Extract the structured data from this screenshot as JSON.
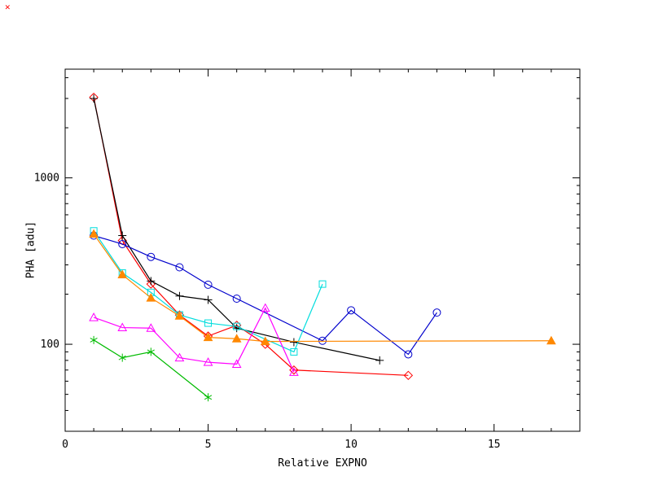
{
  "page": {
    "background": "#ffffff"
  },
  "corner_mark": {
    "symbol": "✕",
    "color": "#ff0000"
  },
  "chart_data": {
    "type": "line",
    "title": "",
    "xlabel": "Relative EXPNO",
    "ylabel": "PHA [adu]",
    "xlim": [
      0,
      18
    ],
    "ylim": [
      30,
      4500
    ],
    "yscale": "log",
    "grid": false,
    "legend": "none",
    "x_ticks": {
      "values": [
        0,
        5,
        10,
        15
      ],
      "labels": [
        "0",
        "5",
        "10",
        "15"
      ],
      "minor_step": 1
    },
    "y_ticks": {
      "values": [
        100,
        1000
      ],
      "labels": [
        "100",
        "1000"
      ]
    },
    "series": [
      {
        "name": "red-diamond",
        "color": "#ff0000",
        "marker": "diamond",
        "filled": false,
        "x": [
          1,
          2,
          3,
          4,
          5,
          6,
          7,
          8,
          12
        ],
        "y": [
          3050,
          420,
          230,
          150,
          112,
          130,
          100,
          70,
          65
        ]
      },
      {
        "name": "black-plus",
        "color": "#000000",
        "marker": "plus",
        "filled": false,
        "x": [
          1,
          2,
          3,
          4,
          5,
          6,
          8,
          11
        ],
        "y": [
          3000,
          450,
          240,
          195,
          185,
          125,
          103,
          80
        ]
      },
      {
        "name": "blue-circle",
        "color": "#0000cc",
        "marker": "circle",
        "filled": false,
        "x": [
          1,
          2,
          3,
          4,
          5,
          6,
          9,
          10,
          12,
          13
        ],
        "y": [
          450,
          400,
          335,
          290,
          228,
          188,
          105,
          160,
          87,
          155
        ]
      },
      {
        "name": "cyan-square",
        "color": "#00dddd",
        "marker": "square",
        "filled": false,
        "x": [
          1,
          2,
          3,
          4,
          5,
          6,
          8,
          9
        ],
        "y": [
          480,
          268,
          205,
          150,
          134,
          128,
          90,
          230
        ]
      },
      {
        "name": "orange-triangle",
        "color": "#ff8800",
        "marker": "triangle",
        "filled": true,
        "x": [
          1,
          2,
          3,
          4,
          5,
          6,
          7,
          17
        ],
        "y": [
          460,
          262,
          190,
          148,
          110,
          108,
          104,
          105
        ]
      },
      {
        "name": "magenta-triangle",
        "color": "#ff00ff",
        "marker": "triangle",
        "filled": false,
        "x": [
          1,
          2,
          3,
          4,
          5,
          6,
          7,
          8
        ],
        "y": [
          145,
          126,
          125,
          83,
          78,
          76,
          165,
          68
        ]
      },
      {
        "name": "green-asterisk",
        "color": "#00bb00",
        "marker": "asterisk",
        "filled": false,
        "x": [
          1,
          2,
          3,
          5
        ],
        "y": [
          106,
          83,
          90,
          48
        ]
      }
    ]
  }
}
